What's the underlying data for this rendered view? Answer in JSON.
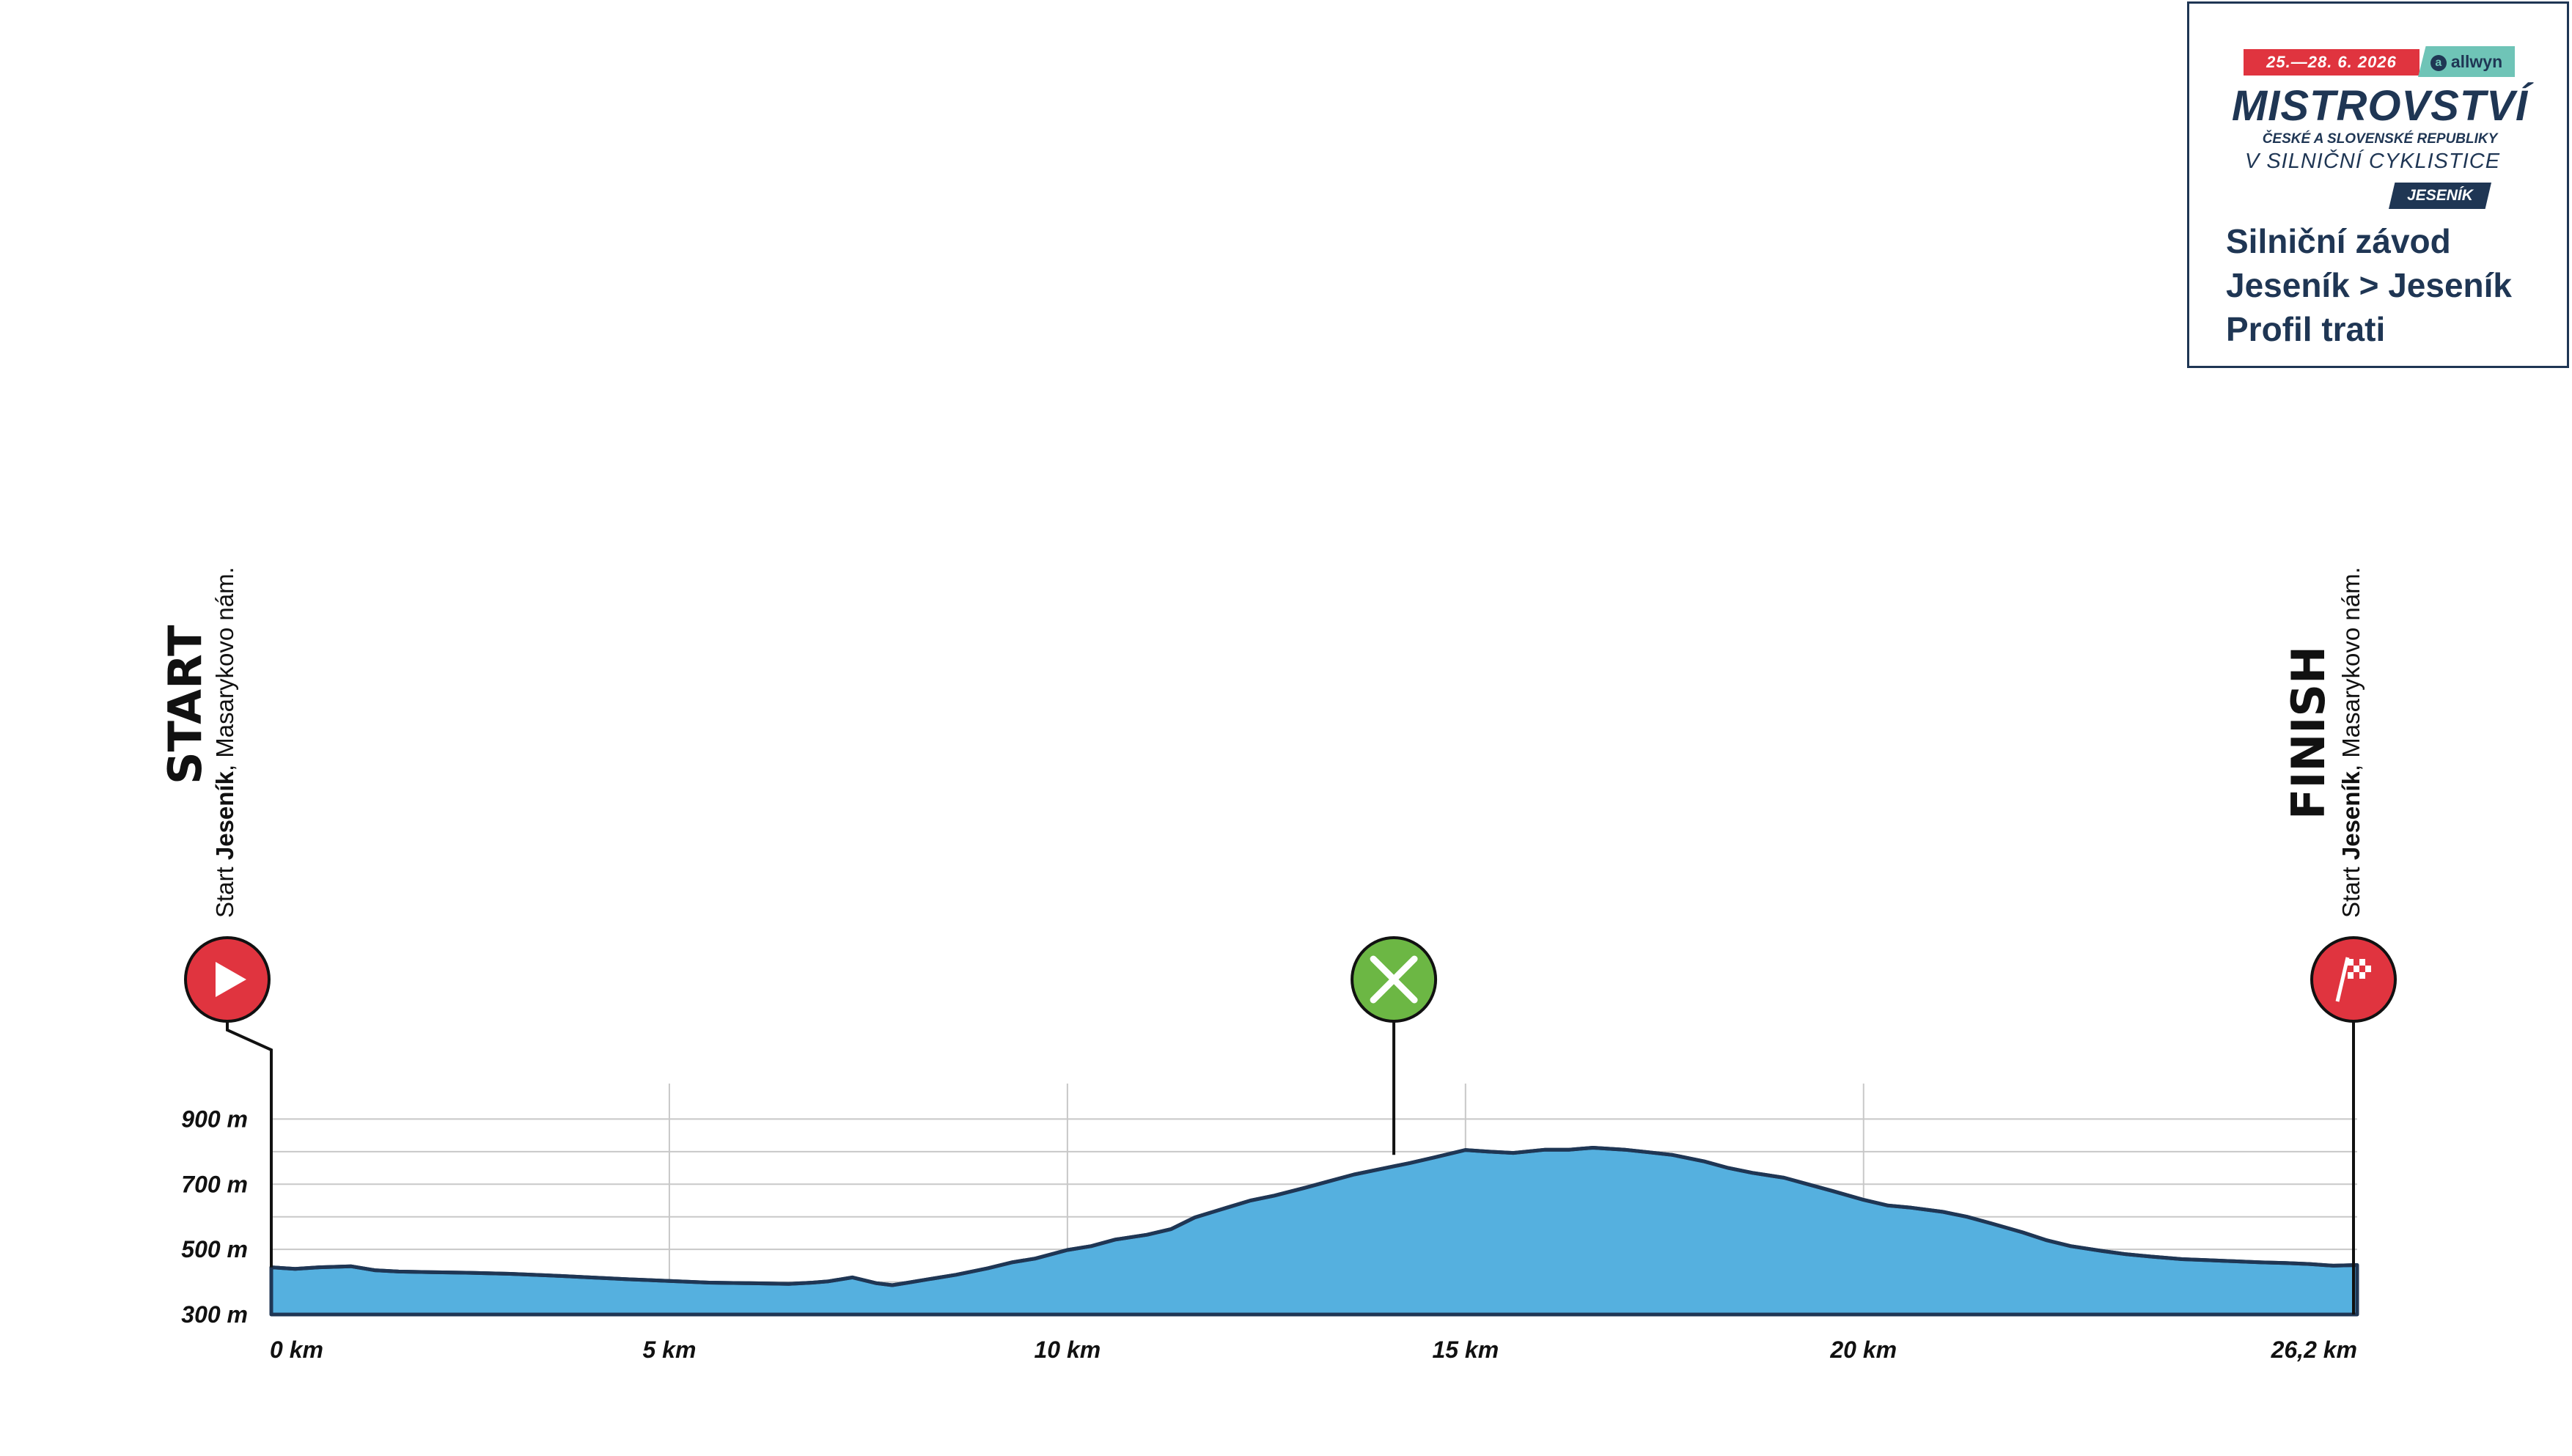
{
  "info_box": {
    "date": "25.—28. 6. 2026",
    "sponsor": "allwyn",
    "title": "MISTROVSTVÍ",
    "subtitle_1": "ČESKÉ A SLOVENSKÉ REPUBLIKY",
    "subtitle_2": "V SILNIČNÍ CYKLISTICE",
    "city": "JESENÍK",
    "race_type": "Silniční závod",
    "route": "Jeseník > Jeseník",
    "doc_title": "Profil trati"
  },
  "markers": {
    "start": {
      "label": "START",
      "place_prefix": "Start ",
      "place_bold": "Jeseník",
      "place_rest": ", Masarykovo nám.",
      "km": 0,
      "color": "#e0343f"
    },
    "feed": {
      "km": 14.1,
      "color": "#6cb744",
      "icon": "fork-knife-icon"
    },
    "finish": {
      "label": "FINISH",
      "place_prefix": "Start ",
      "place_bold": "Jeseník",
      "place_rest": ", Masarykovo nám.",
      "km": 26.2,
      "color": "#e0343f",
      "icon": "checkered-flag-icon"
    }
  },
  "chart_data": {
    "type": "area",
    "title": "",
    "xlabel": "",
    "ylabel": "",
    "xlim": [
      0,
      26.2
    ],
    "ylim": [
      300,
      1000
    ],
    "x_ticks": [
      {
        "value": 0,
        "label": "0 km"
      },
      {
        "value": 5,
        "label": "5 km"
      },
      {
        "value": 10,
        "label": "10 km"
      },
      {
        "value": 15,
        "label": "15 km"
      },
      {
        "value": 20,
        "label": "20 km"
      },
      {
        "value": 26.2,
        "label": "26,2 km"
      }
    ],
    "y_ticks": [
      {
        "value": 300,
        "label": "300 m"
      },
      {
        "value": 500,
        "label": "500 m"
      },
      {
        "value": 700,
        "label": "700 m"
      },
      {
        "value": 900,
        "label": "900 m"
      }
    ],
    "grid": true,
    "fill_color": "#55b0df",
    "line_color": "#1f3654",
    "series": [
      {
        "x": [
          0,
          0.3,
          0.6,
          1.0,
          1.3,
          1.6,
          2.0,
          2.5,
          3.0,
          3.5,
          4.0,
          4.5,
          5.0,
          5.5,
          6.0,
          6.5,
          6.8,
          7.0,
          7.3,
          7.6,
          7.8,
          8.0,
          8.3,
          8.6,
          9.0,
          9.3,
          9.6,
          10.0,
          10.3,
          10.6,
          11.0,
          11.3,
          11.6,
          12.0,
          12.3,
          12.6,
          13.0,
          13.3,
          13.6,
          14.0,
          14.3,
          14.6,
          15.0,
          15.3,
          15.6,
          16.0,
          16.3,
          16.6,
          17.0,
          17.3,
          17.6,
          18.0,
          18.3,
          18.6,
          19.0,
          19.3,
          19.6,
          20.0,
          20.3,
          20.6,
          21.0,
          21.3,
          21.6,
          22.0,
          22.3,
          22.6,
          23.0,
          23.3,
          23.6,
          24.0,
          24.3,
          24.6,
          25.0,
          25.3,
          25.6,
          25.9,
          26.2
        ],
        "y": [
          445,
          440,
          445,
          448,
          436,
          432,
          430,
          428,
          425,
          420,
          414,
          408,
          403,
          398,
          396,
          394,
          398,
          402,
          414,
          396,
          390,
          398,
          410,
          422,
          442,
          460,
          472,
          498,
          510,
          530,
          545,
          562,
          598,
          628,
          650,
          665,
          690,
          710,
          730,
          750,
          765,
          782,
          805,
          800,
          796,
          806,
          806,
          812,
          806,
          798,
          790,
          770,
          750,
          735,
          720,
          700,
          680,
          652,
          635,
          628,
          615,
          600,
          580,
          552,
          528,
          510,
          495,
          485,
          478,
          470,
          467,
          464,
          460,
          458,
          455,
          450,
          452
        ]
      }
    ]
  }
}
